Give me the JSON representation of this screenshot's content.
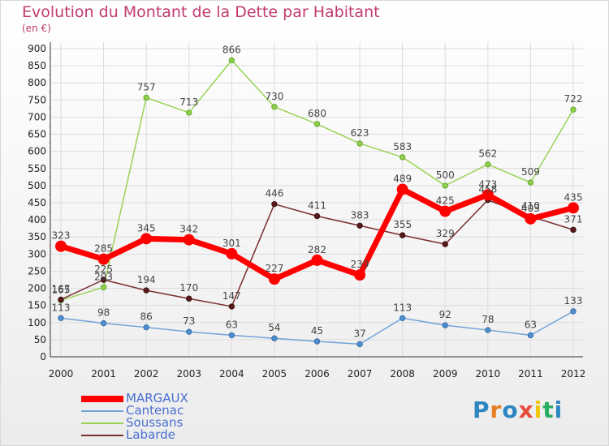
{
  "title": "Evolution du Montant de la Dette par Habitant",
  "unit": "(en €)",
  "logo": {
    "text": "Proxiti",
    "colors": [
      "#2e86c1",
      "#e67e22",
      "#2e86c1",
      "#e74c3c",
      "#f1c40f",
      "#27ae60",
      "#2e86c1"
    ]
  },
  "chart_data": {
    "type": "line",
    "x": [
      "2000",
      "2001",
      "2002",
      "2003",
      "2004",
      "2005",
      "2006",
      "2007",
      "2008",
      "2009",
      "2010",
      "2011",
      "2012"
    ],
    "ylim": [
      0,
      900
    ],
    "yticks": [
      0,
      50,
      100,
      150,
      200,
      250,
      300,
      350,
      400,
      450,
      500,
      550,
      600,
      650,
      700,
      750,
      800,
      850,
      900
    ],
    "grid": true,
    "legend_position": "bottom-left",
    "series": [
      {
        "name": "MARGAUX",
        "color": "#ff0000",
        "values": [
          323,
          285,
          345,
          342,
          301,
          227,
          282,
          239,
          489,
          425,
          473,
          403,
          435
        ],
        "labels": [
          "323",
          "285",
          "345",
          "342",
          "301",
          "227",
          "282",
          "239",
          "489",
          "425",
          "473",
          "403",
          "435"
        ]
      },
      {
        "name": "Cantenac",
        "color": "#6fa3d8",
        "values": [
          113,
          98,
          86,
          73,
          63,
          54,
          45,
          37,
          113,
          92,
          78,
          63,
          133
        ],
        "labels": [
          "113",
          "98",
          "86",
          "73",
          "63",
          "54",
          "45",
          "37",
          "113",
          "92",
          "78",
          "63",
          "133"
        ]
      },
      {
        "name": "Soussans",
        "color": "#99d355",
        "values": [
          165,
          203,
          757,
          713,
          866,
          730,
          680,
          623,
          583,
          500,
          562,
          509,
          722
        ],
        "labels": [
          "165",
          "203",
          "757",
          "713",
          "866",
          "730",
          "680",
          "623",
          "583",
          "500",
          "562",
          "509",
          "722"
        ]
      },
      {
        "name": "Labarde",
        "color": "#7a2e2e",
        "values": [
          167,
          225,
          194,
          170,
          147,
          446,
          411,
          383,
          355,
          329,
          458,
          410,
          371
        ],
        "labels": [
          "167",
          "225",
          "194",
          "170",
          "147",
          "446",
          "411",
          "383",
          "355",
          "329",
          "458",
          "410",
          "371"
        ]
      }
    ]
  }
}
